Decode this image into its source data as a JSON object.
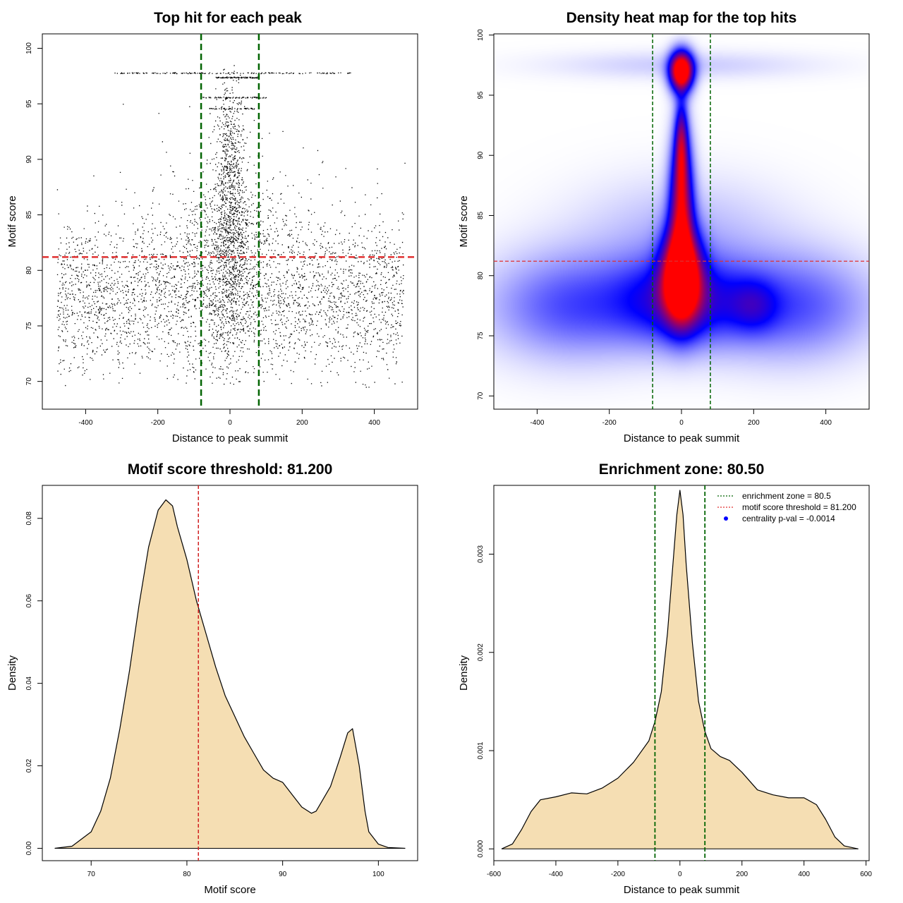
{
  "chart_data": [
    {
      "type": "scatter",
      "title": "Top hit for each peak",
      "xlabel": "Distance to peak summit",
      "ylabel": "Motif score",
      "xlim": [
        -520,
        520
      ],
      "ylim": [
        67.5,
        101.3
      ],
      "xticks": [
        -400,
        -200,
        0,
        200,
        400
      ],
      "yticks": [
        70,
        75,
        80,
        85,
        90,
        95,
        100
      ],
      "vlines": [
        -80,
        80
      ],
      "hline": 81.2,
      "colors": {
        "points": "#000000",
        "vlines": "#006400",
        "hline": "#e03030"
      },
      "clusters": [
        {
          "cx": 0,
          "sx": 250,
          "cy": 77.5,
          "sy": 3.6,
          "n": 3200,
          "uniform_x": true
        },
        {
          "cx": 0,
          "sx": 28,
          "cy": 82,
          "sy": 5.5,
          "n": 900
        },
        {
          "cx": 0,
          "sx": 18,
          "cy": 90,
          "sy": 4,
          "n": 400
        },
        {
          "cx": 0,
          "sx": 90,
          "cy": 83,
          "sy": 2.5,
          "n": 350
        },
        {
          "cx": 0,
          "sx": 200,
          "cy": 85,
          "sy": 3.5,
          "n": 150
        }
      ],
      "stripes": [
        {
          "y": 97.8,
          "x": [
            -320,
            340
          ],
          "n": 160
        },
        {
          "y": 97.4,
          "x": [
            -40,
            80
          ],
          "n": 90
        },
        {
          "y": 95.6,
          "x": [
            -80,
            100
          ],
          "n": 70
        },
        {
          "y": 94.6,
          "x": [
            -60,
            70
          ],
          "n": 50
        }
      ]
    },
    {
      "type": "heatmap",
      "title": "Density heat map for the top hits",
      "xlabel": "Distance to peak summit",
      "ylabel": "Motif score",
      "xlim": [
        -520,
        520
      ],
      "ylim": [
        68.9,
        100.1
      ],
      "xticks": [
        -400,
        -200,
        0,
        200,
        400
      ],
      "yticks": [
        70,
        75,
        80,
        85,
        90,
        95,
        100
      ],
      "vlines": [
        -80,
        80
      ],
      "hline": 81.2,
      "colorscale": [
        "#ffffff",
        "#0000ff",
        "#ff0000"
      ],
      "colors": {
        "vlines": "#006400",
        "hline": "#e03030"
      },
      "blobs": [
        {
          "x": 0,
          "y": 97,
          "sx": 22,
          "sy": 1.1,
          "w": 3.2
        },
        {
          "x": 0,
          "y": 80,
          "sx": 35,
          "sy": 2.5,
          "w": 3.2
        },
        {
          "x": 0,
          "y": 86,
          "sx": 22,
          "sy": 4,
          "w": 2.0
        },
        {
          "x": 0,
          "y": 91,
          "sx": 12,
          "sy": 2.5,
          "w": 1.3
        },
        {
          "x": 0,
          "y": 78,
          "sx": 120,
          "sy": 2.5,
          "w": 1.1
        },
        {
          "x": 200,
          "y": 77.5,
          "sx": 45,
          "sy": 1.5,
          "w": 0.5
        },
        {
          "x": -300,
          "y": 77.5,
          "sx": 160,
          "sy": 3,
          "w": 0.7
        },
        {
          "x": 300,
          "y": 77.5,
          "sx": 160,
          "sy": 3,
          "w": 0.7
        },
        {
          "x": 0,
          "y": 97.5,
          "sx": 250,
          "sy": 0.8,
          "w": 0.2
        },
        {
          "x": 0,
          "y": 84,
          "sx": 200,
          "sy": 3,
          "w": 0.25
        }
      ]
    },
    {
      "type": "area",
      "title": "Motif score threshold: 81.200",
      "xlabel": "Motif score",
      "ylabel": "Density",
      "xlim": [
        64.9,
        104.1
      ],
      "ylim": [
        -0.003,
        0.088
      ],
      "xticks": [
        70,
        80,
        90,
        100
      ],
      "yticks": [
        0.0,
        0.02,
        0.04,
        0.06,
        0.08
      ],
      "ytick_labels": [
        "0.00",
        "0.02",
        "0.04",
        "0.06",
        "0.08"
      ],
      "vline": 81.2,
      "colors": {
        "fill": "#f5deb3",
        "line": "#000000",
        "vline": "#d02020"
      },
      "x": [
        66.2,
        68,
        70,
        71,
        72,
        73,
        74,
        75,
        76,
        77,
        77.8,
        78.5,
        79,
        80,
        81,
        82,
        83,
        84,
        85,
        86,
        87,
        88,
        89,
        90,
        91,
        92,
        93,
        93.5,
        94,
        95,
        96,
        96.8,
        97.3,
        98,
        98.6,
        99,
        100,
        101,
        102.8
      ],
      "y": [
        0,
        0.0005,
        0.004,
        0.009,
        0.017,
        0.029,
        0.043,
        0.059,
        0.073,
        0.082,
        0.0845,
        0.083,
        0.078,
        0.07,
        0.06,
        0.052,
        0.044,
        0.037,
        0.032,
        0.027,
        0.023,
        0.019,
        0.017,
        0.016,
        0.013,
        0.01,
        0.0085,
        0.009,
        0.011,
        0.015,
        0.022,
        0.028,
        0.029,
        0.02,
        0.009,
        0.004,
        0.001,
        0.0002,
        0
      ]
    },
    {
      "type": "area",
      "title": "Enrichment zone: 80.50",
      "xlabel": "Distance to peak summit",
      "ylabel": "Density",
      "xlim": [
        -600,
        610
      ],
      "ylim": [
        -0.00012,
        0.0037
      ],
      "xticks": [
        -600,
        -400,
        -200,
        0,
        200,
        400,
        600
      ],
      "yticks": [
        0,
        0.001,
        0.002,
        0.003
      ],
      "ytick_labels": [
        "0.000",
        "0.001",
        "0.002",
        "0.003"
      ],
      "vlines": [
        -80.5,
        80.5
      ],
      "colors": {
        "fill": "#f5deb3",
        "line": "#000000",
        "vlines": "#006400",
        "legend_red": "#e03030",
        "legend_point": "#0000ff"
      },
      "x": [
        -575,
        -540,
        -510,
        -480,
        -450,
        -400,
        -350,
        -300,
        -250,
        -200,
        -150,
        -100,
        -80,
        -60,
        -40,
        -20,
        -10,
        0,
        10,
        20,
        40,
        60,
        80,
        100,
        130,
        160,
        200,
        250,
        300,
        350,
        400,
        440,
        470,
        500,
        530,
        575
      ],
      "y": [
        0,
        5e-05,
        0.0002,
        0.00038,
        0.0005,
        0.00053,
        0.00057,
        0.00056,
        0.00062,
        0.00072,
        0.00088,
        0.0011,
        0.0013,
        0.0016,
        0.0022,
        0.003,
        0.0034,
        0.00365,
        0.0034,
        0.0029,
        0.0021,
        0.0015,
        0.0012,
        0.00102,
        0.00094,
        0.0009,
        0.00078,
        0.0006,
        0.00055,
        0.00052,
        0.00052,
        0.00045,
        0.0003,
        0.00012,
        3e-05,
        0
      ],
      "legend": [
        {
          "label": "enrichment zone = 80.5",
          "kind": "dotted-line",
          "color": "#006400"
        },
        {
          "label": "motif score threshold = 81.200",
          "kind": "dotted-line",
          "color": "#e03030"
        },
        {
          "label": "centrality p-val = -0.0014",
          "kind": "point",
          "color": "#0000ff"
        }
      ]
    }
  ]
}
